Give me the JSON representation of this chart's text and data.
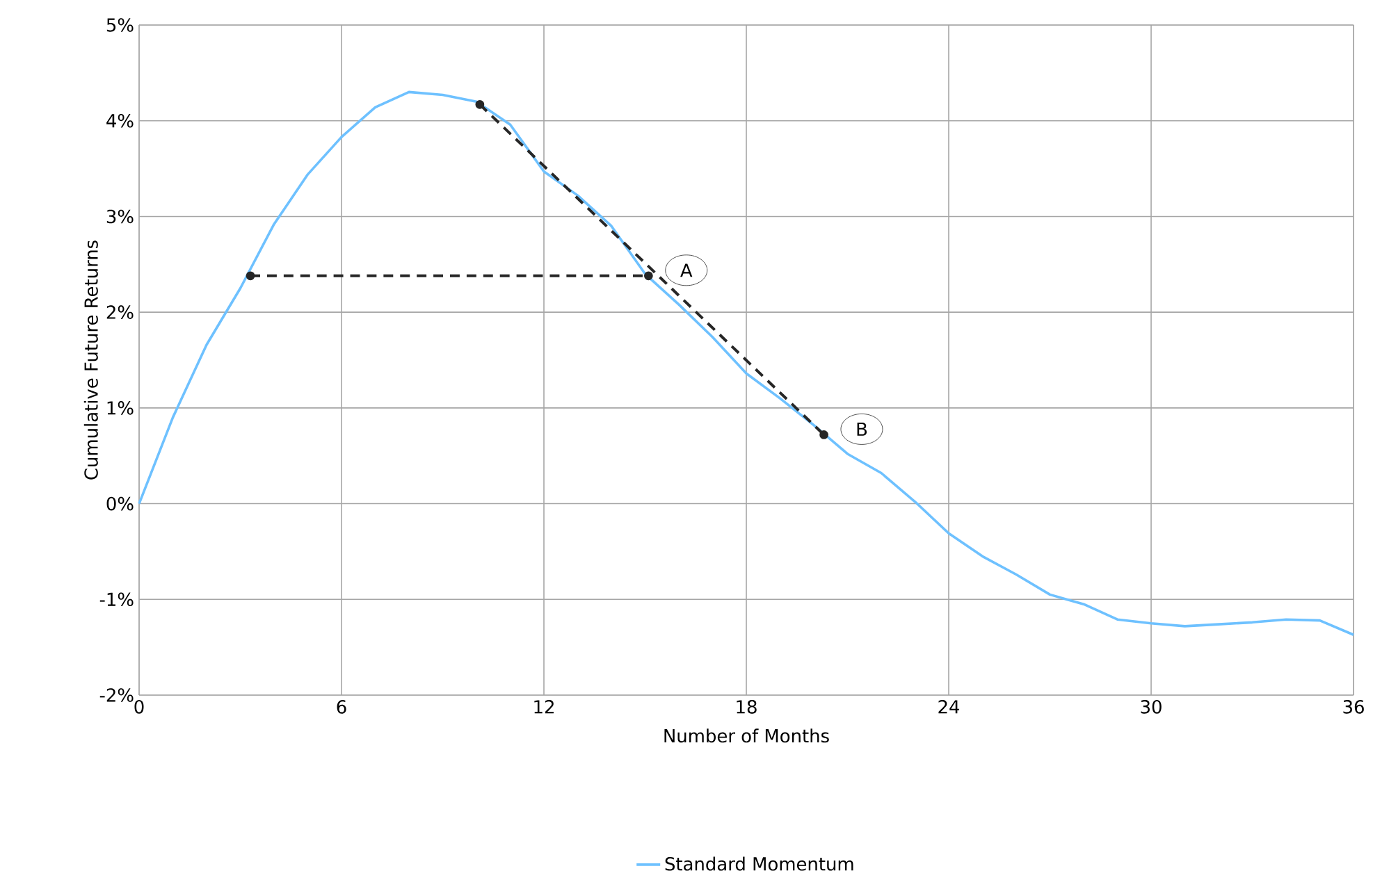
{
  "chart_data": {
    "type": "line",
    "xlabel": "Number of Months",
    "ylabel": "Cumulative Future Returns",
    "xlim": [
      0,
      36
    ],
    "xticks": [
      0,
      6,
      12,
      18,
      24,
      30,
      36
    ],
    "ylim": [
      -2,
      5
    ],
    "yticks": [
      {
        "value": -2,
        "label": "-2%"
      },
      {
        "value": -1,
        "label": "-1%"
      },
      {
        "value": 0,
        "label": "0%"
      },
      {
        "value": 1,
        "label": "1%"
      },
      {
        "value": 2,
        "label": "2%"
      },
      {
        "value": 3,
        "label": "3%"
      },
      {
        "value": 4,
        "label": "4%"
      },
      {
        "value": 5,
        "label": "5%"
      }
    ],
    "grid": true,
    "legend": "bottom",
    "series": [
      {
        "name": "Standard Momentum",
        "color": "#6ec1ff",
        "x": [
          0,
          1,
          2,
          3,
          4,
          5,
          6,
          7,
          8,
          9,
          10,
          11,
          12,
          13,
          14,
          15,
          16,
          17,
          18,
          19,
          20,
          21,
          22,
          23,
          24,
          25,
          26,
          27,
          28,
          29,
          30,
          31,
          32,
          33,
          34,
          35,
          36
        ],
        "values": [
          0,
          0.9,
          1.66,
          2.25,
          2.92,
          3.44,
          3.83,
          4.14,
          4.3,
          4.27,
          4.2,
          3.96,
          3.47,
          3.22,
          2.9,
          2.4,
          2.08,
          1.74,
          1.36,
          1.1,
          0.82,
          0.52,
          0.32,
          0.02,
          -0.31,
          -0.55,
          -0.74,
          -0.95,
          -1.05,
          -1.21,
          -1.25,
          -1.28,
          -1.26,
          -1.24,
          -1.21,
          -1.22,
          -1.37
        ]
      },
      {
        "type": "line",
        "color": "#262626",
        "line_style": "dashed",
        "marker": "circle",
        "x": [
          3.3,
          15.1
        ],
        "values": [
          2.38,
          2.38
        ]
      },
      {
        "type": "line",
        "color": "#262626",
        "line_style": "dashed",
        "marker": "circle",
        "x": [
          10.1,
          20.3
        ],
        "values": [
          4.17,
          0.72
        ]
      }
    ],
    "annotations": [
      {
        "text": "A",
        "x": 15.1,
        "y": 2.38
      },
      {
        "text": "B",
        "x": 20.3,
        "y": 0.72
      }
    ]
  }
}
